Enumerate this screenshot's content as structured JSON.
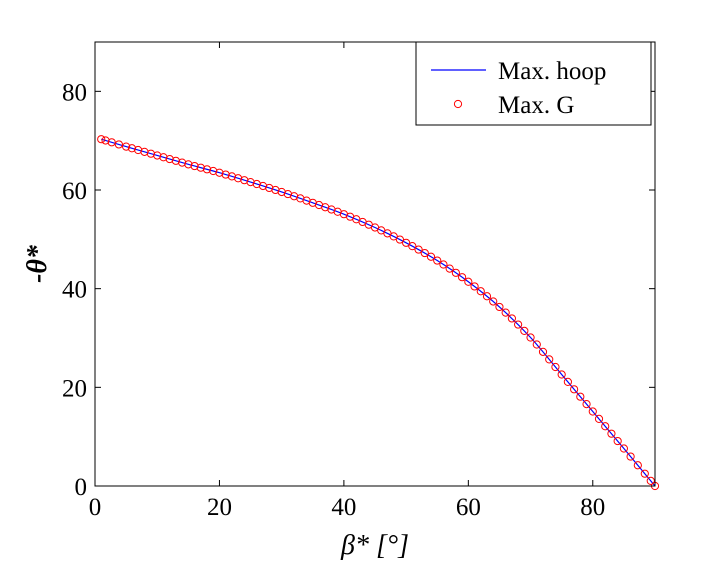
{
  "chart_data": {
    "type": "line",
    "title": "",
    "xlabel": "β* [°]",
    "ylabel": "-θ*",
    "xlim": [
      0,
      90
    ],
    "ylim": [
      0,
      90
    ],
    "xticks": [
      0,
      20,
      40,
      60,
      80
    ],
    "yticks": [
      0,
      20,
      40,
      60,
      80
    ],
    "grid": false,
    "legend_position": "top-right",
    "series": [
      {
        "name": "Max. hoop",
        "style": "line",
        "color": "#0000ff",
        "x": [
          1,
          5,
          10,
          15,
          20,
          25,
          30,
          35,
          40,
          45,
          50,
          55,
          60,
          65,
          70,
          75,
          80,
          85,
          90
        ],
        "y": [
          70.3,
          68.8,
          67.0,
          65.2,
          63.5,
          61.6,
          59.6,
          57.4,
          55.1,
          52.4,
          49.3,
          45.7,
          41.4,
          36.3,
          30.1,
          22.6,
          15.1,
          7.6,
          0
        ]
      },
      {
        "name": "Max. G",
        "style": "marker",
        "marker": "circle-open",
        "color": "#ff0000",
        "x": [
          1,
          5,
          10,
          15,
          20,
          25,
          30,
          35,
          40,
          45,
          50,
          55,
          60,
          65,
          70,
          75,
          80,
          85,
          90
        ],
        "y": [
          70.3,
          68.8,
          67.0,
          65.2,
          63.5,
          61.6,
          59.6,
          57.4,
          55.1,
          52.4,
          49.3,
          45.7,
          41.4,
          36.3,
          30.1,
          22.6,
          15.1,
          7.6,
          0
        ]
      }
    ]
  }
}
